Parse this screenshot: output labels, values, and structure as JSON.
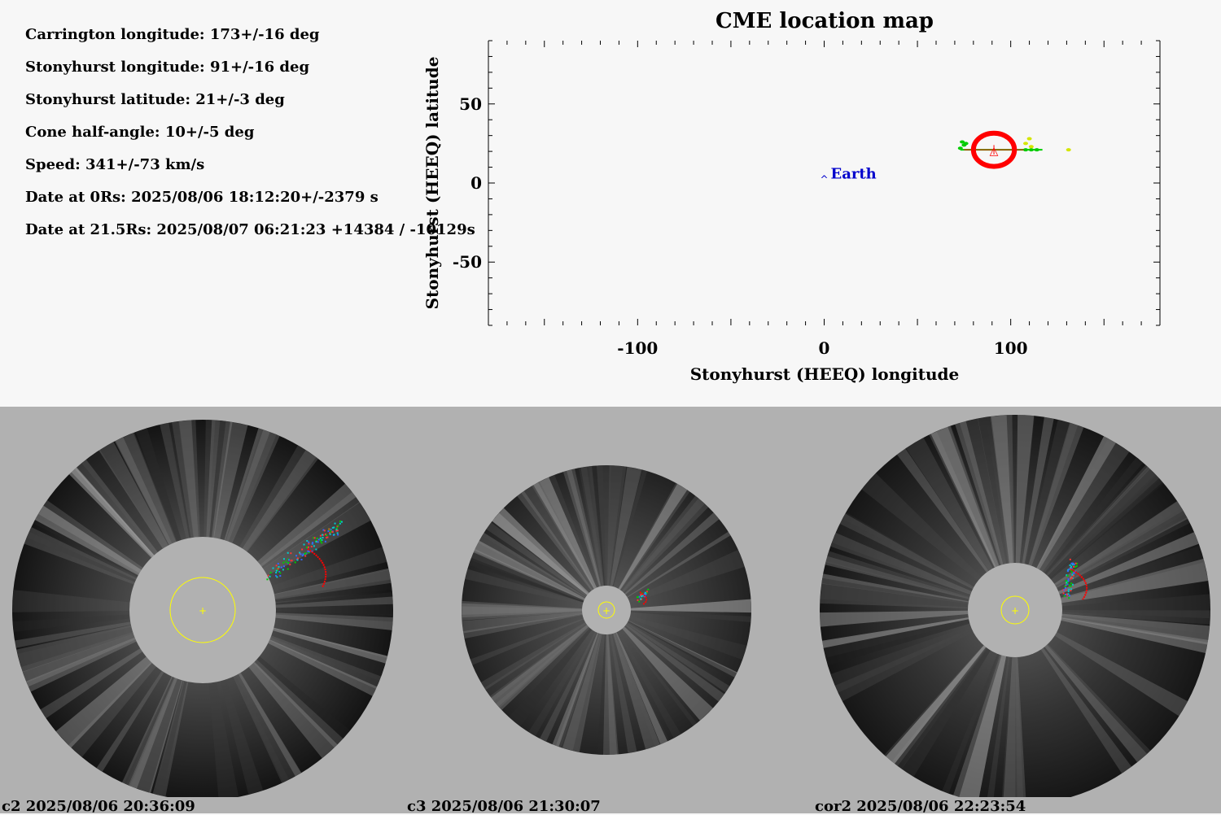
{
  "parameters": [
    "Carrington longitude: 173+/-16 deg",
    "Stonyhurst longitude: 91+/-16 deg",
    "Stonyhurst latitude: 21+/-3 deg",
    "Cone half-angle: 10+/-5 deg",
    "Speed: 341+/-73 km/s",
    "Date at 0Rs: 2025/08/06 18:12:20+/-2379 s",
    "Date at 21.5Rs: 2025/08/07 06:21:23 +14384 / -10129s"
  ],
  "chart_data": {
    "type": "scatter",
    "title": "CME location map",
    "xlabel": "Stonyhurst (HEEQ) longitude",
    "ylabel": "Stonyhurst (HEEQ) latitude",
    "xlim": [
      -180,
      180
    ],
    "ylim": [
      -90,
      90
    ],
    "xticks": [
      -100,
      0,
      100
    ],
    "yticks": [
      -50,
      0,
      50
    ],
    "earth": {
      "label": "Earth",
      "lon": 0,
      "lat": 5
    },
    "cme": {
      "lon": 91,
      "lat": 21,
      "lon_err": 16,
      "lat_err": 3,
      "half_angle": 10
    },
    "source_points": [
      {
        "lon": 73,
        "lat": 22,
        "color": "#00cc00"
      },
      {
        "lon": 75,
        "lat": 24,
        "color": "#00cc00"
      },
      {
        "lon": 74,
        "lat": 26,
        "color": "#00cc00"
      },
      {
        "lon": 76,
        "lat": 25,
        "color": "#00cc00"
      },
      {
        "lon": 108,
        "lat": 21,
        "color": "#00cc00"
      },
      {
        "lon": 111,
        "lat": 21,
        "color": "#00cc00"
      },
      {
        "lon": 114,
        "lat": 21,
        "color": "#00cc00"
      },
      {
        "lon": 108,
        "lat": 25,
        "color": "#d4e600"
      },
      {
        "lon": 110,
        "lat": 28,
        "color": "#d4e600"
      },
      {
        "lon": 111,
        "lat": 23,
        "color": "#d4e600"
      },
      {
        "lon": 131,
        "lat": 21,
        "color": "#d4e600"
      }
    ],
    "colors": {
      "cme_ring": "#ff0000",
      "earth": "#0000cc",
      "axes": "#000000"
    }
  },
  "panels": [
    {
      "caption": "c2 2025/08/06 20:36:09"
    },
    {
      "caption": "c3 2025/08/06 21:30:07"
    },
    {
      "caption": "cor2 2025/08/06 22:23:54"
    }
  ]
}
